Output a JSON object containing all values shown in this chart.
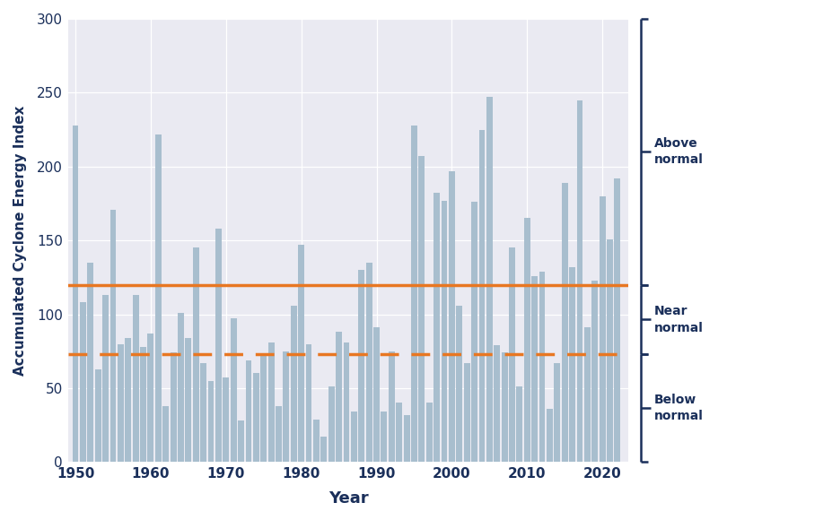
{
  "years": [
    1950,
    1951,
    1952,
    1953,
    1954,
    1955,
    1956,
    1957,
    1958,
    1959,
    1960,
    1961,
    1962,
    1963,
    1964,
    1965,
    1966,
    1967,
    1968,
    1969,
    1970,
    1971,
    1972,
    1973,
    1974,
    1975,
    1976,
    1977,
    1978,
    1979,
    1980,
    1981,
    1982,
    1983,
    1984,
    1985,
    1986,
    1987,
    1988,
    1989,
    1990,
    1991,
    1992,
    1993,
    1994,
    1995,
    1996,
    1997,
    1998,
    1999,
    2000,
    2001,
    2002,
    2003,
    2004,
    2005,
    2006,
    2007,
    2008,
    2009,
    2010,
    2011,
    2012,
    2013,
    2014,
    2015,
    2016,
    2017,
    2018,
    2019,
    2020,
    2021,
    2022
  ],
  "ace_values": [
    228,
    108,
    135,
    63,
    113,
    171,
    80,
    84,
    113,
    78,
    87,
    222,
    38,
    74,
    101,
    84,
    145,
    67,
    55,
    158,
    57,
    97,
    28,
    69,
    60,
    73,
    81,
    38,
    75,
    106,
    147,
    80,
    29,
    17,
    51,
    88,
    81,
    34,
    130,
    135,
    91,
    34,
    75,
    40,
    32,
    228,
    207,
    40,
    182,
    177,
    197,
    106,
    67,
    176,
    225,
    247,
    79,
    74,
    145,
    51,
    165,
    126,
    129,
    36,
    67,
    189,
    132,
    245,
    91,
    123,
    180,
    151,
    192
  ],
  "bar_color": "#a8bece",
  "bar_edge_color": "none",
  "line_upper": 120,
  "line_lower": 73,
  "line_color_upper": "#e87722",
  "line_color_lower": "#e87722",
  "line_style_upper": "-",
  "line_style_lower": "--",
  "line_width": 2.5,
  "xlabel": "Year",
  "ylabel": "Accumulated Cyclone Energy Index",
  "ylim": [
    0,
    300
  ],
  "xlim": [
    1949.0,
    2023.5
  ],
  "yticks": [
    0,
    50,
    100,
    150,
    200,
    250,
    300
  ],
  "xticks": [
    1950,
    1960,
    1970,
    1980,
    1990,
    2000,
    2010,
    2020
  ],
  "plot_bg_color": "#eaeaf2",
  "axis_color": "#1a2f5a",
  "label_above": "Above\nnormal",
  "label_near": "Near\nnormal",
  "label_below": "Below\nnormal",
  "grid_color": "#ffffff",
  "outer_bg": "#ffffff"
}
